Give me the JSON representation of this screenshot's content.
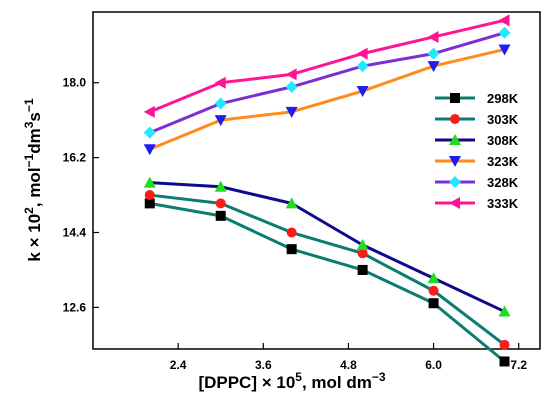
{
  "chart_data": {
    "type": "line",
    "x": [
      2.0,
      3.0,
      4.0,
      5.0,
      6.0,
      7.0
    ],
    "xlim": [
      1.2,
      7.5
    ],
    "ylim": [
      11.6,
      19.7
    ],
    "xticks": [
      2.4,
      3.6,
      4.8,
      6.0,
      7.2
    ],
    "yticks": [
      12.6,
      14.4,
      16.2,
      18.0
    ],
    "xtick_labels": [
      "2.4",
      "3.6",
      "4.8",
      "6.0",
      "7.2"
    ],
    "ytick_labels": [
      "12.6",
      "14.4",
      "16.2",
      "18.0"
    ],
    "xlabel": {
      "main": "[DPPC] × 10",
      "sup": "5",
      "tail": ", mol dm",
      "sup2": "−3"
    },
    "ylabel": {
      "main": "k × 10",
      "sup": "2",
      "mid": ", mol",
      "sup2": "−1",
      "mid2": "dm",
      "sup3": "3",
      "mid3": "s",
      "sup4": "−1"
    },
    "legend_position": "right",
    "grid": false,
    "series": [
      {
        "name": "298K",
        "color": "#0b7d6e",
        "marker": "square",
        "marker_color": "#000000",
        "values": [
          15.1,
          14.8,
          14.0,
          13.5,
          12.7,
          11.3
        ]
      },
      {
        "name": "303K",
        "color": "#0b7d6e",
        "marker": "circle",
        "marker_color": "#ff1a1a",
        "values": [
          15.3,
          15.1,
          14.4,
          13.9,
          13.0,
          11.7
        ]
      },
      {
        "name": "308K",
        "color": "#0d0a8c",
        "marker": "triangle-up",
        "marker_color": "#1fdd1f",
        "values": [
          15.6,
          15.5,
          15.1,
          14.1,
          13.3,
          12.5
        ]
      },
      {
        "name": "323K",
        "color": "#ff8c1a",
        "marker": "triangle-down",
        "marker_color": "#1e1ef0",
        "values": [
          16.4,
          17.1,
          17.3,
          17.8,
          18.4,
          18.8
        ]
      },
      {
        "name": "328K",
        "color": "#7a2fd4",
        "marker": "diamond",
        "marker_color": "#22e8ff",
        "values": [
          16.8,
          17.5,
          17.9,
          18.4,
          18.7,
          19.2
        ]
      },
      {
        "name": "333K",
        "color": "#ff1493",
        "marker": "triangle-left",
        "marker_color": "#ff1493",
        "values": [
          17.3,
          18.0,
          18.2,
          18.7,
          19.1,
          19.5
        ]
      }
    ]
  }
}
